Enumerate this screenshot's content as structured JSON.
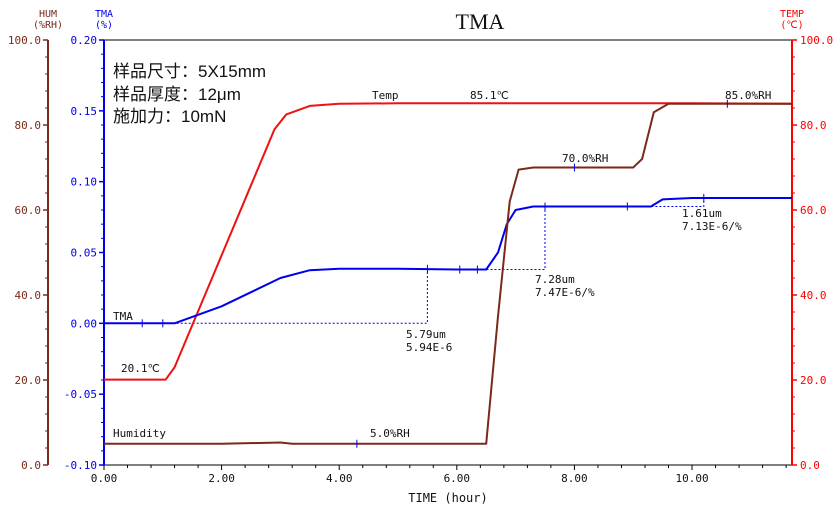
{
  "chart_data": {
    "type": "line",
    "title": "TMA",
    "xlabel": "TIME (hour)",
    "xlim": [
      0,
      11.7
    ],
    "x_ticks": [
      "0.00",
      "2.00",
      "4.00",
      "6.00",
      "8.00",
      "10.00"
    ],
    "x_tick_values": [
      0,
      2,
      4,
      6,
      8,
      10
    ],
    "axes": {
      "hum": {
        "label_line1": "HUM",
        "label_line2": "(%RH)",
        "ylim": [
          0,
          100
        ],
        "ticks": [
          "0.0",
          "20.0",
          "40.0",
          "60.0",
          "80.0",
          "100.0"
        ],
        "tick_values": [
          0,
          20,
          40,
          60,
          80,
          100
        ],
        "color": "#7a2a1a"
      },
      "tma": {
        "label_line1": "TMA",
        "label_line2": "(%)",
        "ylim": [
          -0.1,
          0.2
        ],
        "ticks": [
          "-0.10",
          "-0.05",
          "0.00",
          "0.05",
          "0.10",
          "0.15",
          "0.20"
        ],
        "tick_values": [
          -0.1,
          -0.05,
          0.0,
          0.05,
          0.1,
          0.15,
          0.2
        ],
        "color": "#0000ee"
      },
      "temp": {
        "label_line1": "TEMP",
        "label_line2": "(℃)",
        "ylim": [
          0,
          100
        ],
        "ticks": [
          "0.0",
          "20.0",
          "40.0",
          "60.0",
          "80.0",
          "100.0"
        ],
        "tick_values": [
          0,
          20,
          40,
          60,
          80,
          100
        ],
        "color": "#ff0000"
      }
    },
    "sample_info": [
      "样品尺寸：5X15mm",
      "样品厚度：12μm",
      "施加力：10mN"
    ],
    "series": [
      {
        "name": "Temp",
        "axis": "temp",
        "color": "#ee1111",
        "x": [
          0,
          1.05,
          1.2,
          2.9,
          3.1,
          3.5,
          4.0,
          5.0,
          6.0,
          7.0,
          8.0,
          9.0,
          10.0,
          11.7
        ],
        "y": [
          20.1,
          20.1,
          23,
          79,
          82.5,
          84.5,
          85.0,
          85.1,
          85.1,
          85.1,
          85.1,
          85.1,
          85.1,
          85.0
        ]
      },
      {
        "name": "TMA",
        "axis": "tma",
        "color": "#0000ee",
        "x": [
          0,
          1.2,
          2.0,
          2.5,
          3.0,
          3.5,
          4.0,
          5.0,
          6.0,
          6.5,
          6.7,
          6.85,
          7.0,
          7.3,
          8.0,
          9.0,
          9.3,
          9.5,
          10.0,
          11.7
        ],
        "y": [
          0.0,
          0.0,
          0.012,
          0.022,
          0.032,
          0.0375,
          0.0385,
          0.0385,
          0.038,
          0.038,
          0.05,
          0.07,
          0.08,
          0.0825,
          0.0825,
          0.0825,
          0.0825,
          0.0875,
          0.0885,
          0.0885
        ]
      },
      {
        "name": "Humidity",
        "axis": "hum",
        "color": "#7a2a1a",
        "x": [
          0,
          1.0,
          2.0,
          3.0,
          3.2,
          4.0,
          5.0,
          6.0,
          6.5,
          6.7,
          6.9,
          7.05,
          7.3,
          8.0,
          9.0,
          9.15,
          9.35,
          9.6,
          10.0,
          11.7
        ],
        "y": [
          5.0,
          5.0,
          5.0,
          5.3,
          5.0,
          5.0,
          5.0,
          5.0,
          5.0,
          35,
          62,
          69.5,
          70.0,
          70.0,
          70.0,
          72,
          83,
          85.0,
          85.0,
          85.0
        ]
      }
    ],
    "annotations": {
      "temp_series_label": "Temp",
      "temp_start": "20.1℃",
      "temp_plateau": "85.1℃",
      "hum_series_label": "Humidity",
      "hum_low": "5.0%RH",
      "hum_mid": "70.0%RH",
      "hum_high": "85.0%RH",
      "tma_series_label": "TMA",
      "step1_line1": "5.79um",
      "step1_line2": "5.94E-6",
      "step2_line1": "7.28um",
      "step2_line2": "7.47E-6/%",
      "step3_line1": "1.61um",
      "step3_line2": "7.13E-6/%"
    }
  }
}
